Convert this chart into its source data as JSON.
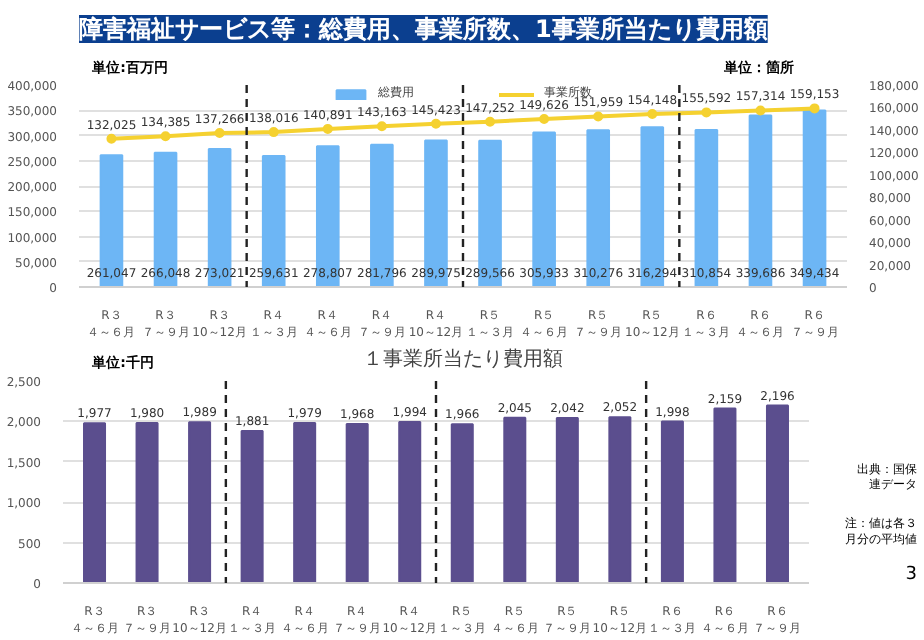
{
  "chart_data": [
    {
      "type": "bar",
      "title": "障害福祉サービス等：総費用、事業所数、1事業所当たり費用額",
      "ylabel": "単位:百万円",
      "y2label": "単位：箇所",
      "categories": [
        "R３４～６月",
        "R３７～９月",
        "R３10～12月",
        "R４１～３月",
        "R４４～６月",
        "R４７～９月",
        "R４10～12月",
        "R５１～３月",
        "R５４～６月",
        "R５７～９月",
        "R５10～12月",
        "R６１～３月",
        "R６４～６月",
        "R６７～９月"
      ],
      "series": [
        {
          "name": "総費用",
          "type": "bar",
          "color": "#6db6f5",
          "values": [
            261047,
            266048,
            273021,
            259631,
            278807,
            281796,
            289975,
            289566,
            305933,
            310276,
            316294,
            310854,
            339686,
            349434
          ],
          "value_labels": [
            "261,047",
            "266,048",
            "273,021",
            "259,631",
            "278,807",
            "281,796",
            "289,975",
            "289,566",
            "305,933",
            "310,276",
            "316,294",
            "310,854",
            "339,686",
            "349,434"
          ]
        },
        {
          "name": "事業所数",
          "type": "line",
          "axis": "y2",
          "color": "#f5d130",
          "marker": "circle",
          "values": [
            132025,
            134385,
            137266,
            138016,
            140891,
            143163,
            145423,
            147252,
            149626,
            151959,
            154148,
            155592,
            157314,
            159153
          ],
          "value_labels": [
            "132,025",
            "134,385",
            "137,266",
            "138,016",
            "140,891",
            "143,163",
            "145,423",
            "147,252",
            "149,626",
            "151,959",
            "154,148",
            "155,592",
            "157,314",
            "159,153"
          ]
        }
      ],
      "ylim": [
        0,
        400000
      ],
      "yticks": [
        0,
        {
          "value": 50000,
          "label": "50,000"
        },
        {
          "value": 100000,
          "label": "100,000"
        },
        {
          "value": 150000,
          "label": "150,000"
        },
        {
          "value": 200000,
          "label": "200,000"
        },
        {
          "value": 250000,
          "label": "250,000"
        },
        {
          "value": 300000,
          "label": "300,000"
        },
        {
          "value": 350000,
          "label": "350,000"
        },
        {
          "value": 400000,
          "label": "400,000"
        }
      ],
      "y2lim": [
        0,
        180000
      ],
      "y2ticks": [
        0,
        {
          "value": 20000,
          "label": "20,000"
        },
        {
          "value": 40000,
          "label": "40,000"
        },
        {
          "value": 60000,
          "label": "60,000"
        },
        {
          "value": 80000,
          "label": "80,000"
        },
        {
          "value": 100000,
          "label": "100,000"
        },
        {
          "value": 120000,
          "label": "120,000"
        },
        {
          "value": 140000,
          "label": "140,000"
        },
        {
          "value": 160000,
          "label": "160,000"
        },
        {
          "value": 180000,
          "label": "180,000"
        }
      ],
      "grid": "y",
      "legend": "top"
    },
    {
      "type": "bar",
      "title": "１事業所当たり費用額",
      "ylabel": "単位:千円",
      "categories": [
        "R３４～６月",
        "R３７～９月",
        "R３10～12月",
        "R４１～３月",
        "R４４～６月",
        "R４７～９月",
        "R４10～12月",
        "R５１～３月",
        "R５４～６月",
        "R５７～９月",
        "R５10～12月",
        "R６１～３月",
        "R６４～６月",
        "R６７～９月"
      ],
      "series": [
        {
          "color": "#5b4e8e",
          "values": [
            1977,
            1980,
            1989,
            1881,
            1979,
            1968,
            1994,
            1966,
            2045,
            2042,
            2052,
            1998,
            2159,
            2196
          ],
          "value_labels": [
            "1,977",
            "1,980",
            "1,989",
            "1,881",
            "1,979",
            "1,968",
            "1,994",
            "1,966",
            "2,045",
            "2,042",
            "2,052",
            "1,998",
            "2,159",
            "2,196"
          ]
        }
      ],
      "ylim": [
        0,
        2500
      ],
      "yticks": [
        0,
        500,
        {
          "value": 1000,
          "label": "1,000"
        },
        {
          "value": 1500,
          "label": "1,500"
        },
        {
          "value": 2000,
          "label": "2,000"
        },
        {
          "value": 2500,
          "label": "2,500"
        }
      ],
      "grid": "y",
      "annotations": [
        "出典：国保連データ",
        "注：値は各３月分の平均値",
        "3"
      ]
    }
  ]
}
